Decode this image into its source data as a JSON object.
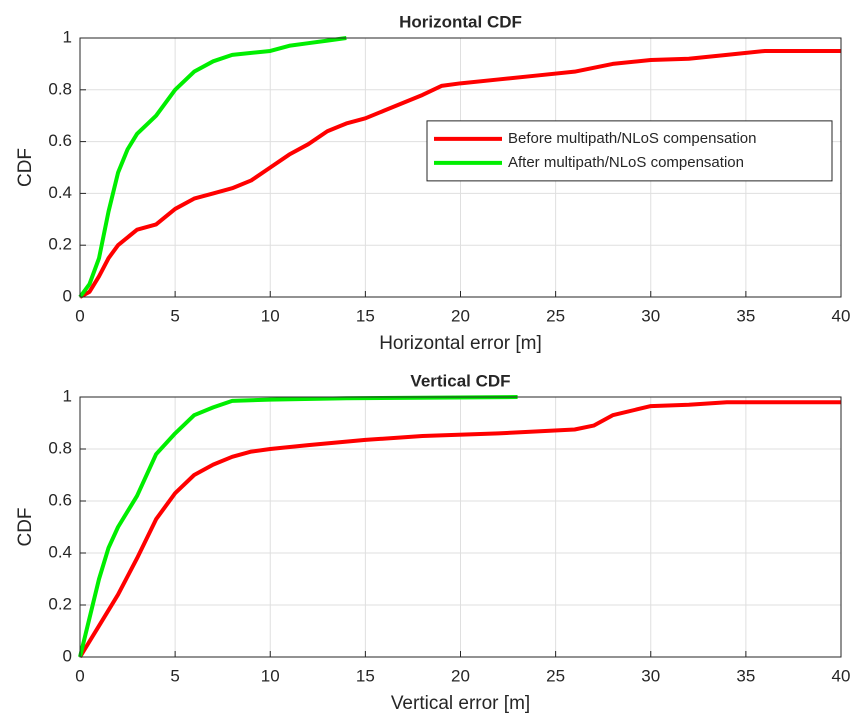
{
  "chart_data": [
    {
      "type": "line",
      "title": "Horizontal CDF",
      "xlabel": "Horizontal error [m]",
      "ylabel": "CDF",
      "xlim": [
        0,
        40
      ],
      "xticks": [
        0,
        5,
        10,
        15,
        20,
        25,
        30,
        35,
        40
      ],
      "ylim": [
        0,
        1
      ],
      "yticks": [
        0,
        0.2,
        0.4,
        0.6,
        0.8,
        1
      ],
      "grid": true,
      "legend": "east",
      "series": [
        {
          "name": "Before multipath/NLoS compensation",
          "color": "#ff0000",
          "x": [
            0,
            0.5,
            1,
            1.5,
            2,
            3,
            4,
            5,
            6,
            7,
            8,
            9,
            10,
            11,
            12,
            13,
            14,
            15,
            16,
            17,
            18,
            19,
            20,
            22,
            24,
            26,
            28,
            30,
            32,
            34,
            36,
            38,
            40
          ],
          "values": [
            0,
            0.02,
            0.08,
            0.15,
            0.2,
            0.26,
            0.28,
            0.34,
            0.38,
            0.4,
            0.42,
            0.45,
            0.5,
            0.55,
            0.59,
            0.64,
            0.67,
            0.69,
            0.72,
            0.75,
            0.78,
            0.815,
            0.825,
            0.84,
            0.855,
            0.87,
            0.9,
            0.915,
            0.92,
            0.935,
            0.95,
            0.95,
            0.95
          ]
        },
        {
          "name": "After multipath/NLoS compensation",
          "color": "#00ee00",
          "x": [
            0,
            0.5,
            1,
            1.5,
            2,
            2.5,
            3,
            4,
            5,
            6,
            7,
            8,
            10,
            11,
            12,
            13,
            14
          ],
          "values": [
            0,
            0.05,
            0.15,
            0.33,
            0.48,
            0.57,
            0.63,
            0.7,
            0.8,
            0.87,
            0.91,
            0.935,
            0.95,
            0.97,
            0.98,
            0.99,
            1
          ]
        }
      ]
    },
    {
      "type": "line",
      "title": "Vertical CDF",
      "xlabel": "Vertical error [m]",
      "ylabel": "CDF",
      "xlim": [
        0,
        40
      ],
      "xticks": [
        0,
        5,
        10,
        15,
        20,
        25,
        30,
        35,
        40
      ],
      "ylim": [
        0,
        1
      ],
      "yticks": [
        0,
        0.2,
        0.4,
        0.6,
        0.8,
        1
      ],
      "grid": true,
      "series": [
        {
          "color": "#ff0000",
          "x": [
            0,
            1,
            2,
            3,
            4,
            5,
            6,
            7,
            8,
            9,
            10,
            12,
            15,
            18,
            22,
            26,
            27,
            28,
            30,
            32,
            34,
            40
          ],
          "values": [
            0,
            0.12,
            0.24,
            0.38,
            0.53,
            0.63,
            0.7,
            0.74,
            0.77,
            0.79,
            0.8,
            0.815,
            0.835,
            0.85,
            0.86,
            0.875,
            0.89,
            0.93,
            0.965,
            0.97,
            0.98,
            0.98
          ]
        },
        {
          "color": "#00ee00",
          "x": [
            0,
            0.5,
            1,
            1.5,
            2,
            3,
            4,
            5,
            6,
            7,
            8,
            10,
            14,
            23
          ],
          "values": [
            0,
            0.15,
            0.3,
            0.42,
            0.5,
            0.62,
            0.78,
            0.86,
            0.93,
            0.96,
            0.985,
            0.99,
            0.995,
            1
          ]
        }
      ]
    }
  ]
}
